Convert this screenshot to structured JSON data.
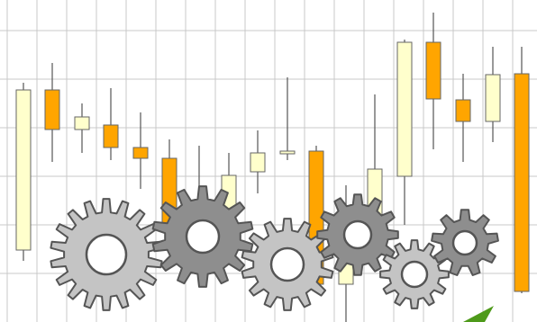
{
  "colors": {
    "background": "#ffffff",
    "grid": "#c8c8c8",
    "wick": "#555555",
    "body_stroke": "#666666",
    "bull_fill": "#ffffcc",
    "bear_fill": "#ffa500",
    "gear_light_fill": "#c4c4c4",
    "gear_dark_fill": "#8e8e8e",
    "gear_stroke": "#555555",
    "accent_green": "#4e9a1a"
  },
  "icons": [
    "candlestick-chart-graphic",
    "gear-icon",
    "green-arrow-icon"
  ]
}
